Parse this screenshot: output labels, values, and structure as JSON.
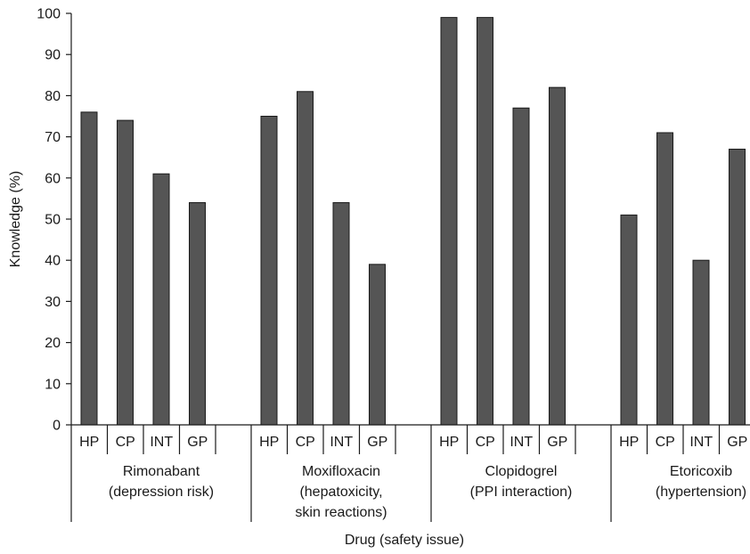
{
  "chart_data": {
    "type": "bar",
    "xlabel": "Drug (safety issue)",
    "ylabel": "Knowledge (%)",
    "ylim": [
      0,
      100
    ],
    "yticks": [
      0,
      10,
      20,
      30,
      40,
      50,
      60,
      70,
      80,
      90,
      100
    ],
    "grid": false,
    "legend": "none",
    "bar_color": "#555555",
    "groups": [
      {
        "label_lines": [
          "Rimonabant",
          "(depression risk)"
        ],
        "categories": [
          "HP",
          "CP",
          "INT",
          "GP"
        ],
        "values": [
          76,
          74,
          61,
          54
        ]
      },
      {
        "label_lines": [
          "Moxifloxacin",
          "(hepatoxicity,",
          "skin reactions)"
        ],
        "categories": [
          "HP",
          "CP",
          "INT",
          "GP"
        ],
        "values": [
          75,
          81,
          54,
          39
        ]
      },
      {
        "label_lines": [
          "Clopidogrel",
          "(PPI interaction)"
        ],
        "categories": [
          "HP",
          "CP",
          "INT",
          "GP"
        ],
        "values": [
          99,
          99,
          77,
          82
        ]
      },
      {
        "label_lines": [
          "Etoricoxib",
          "(hypertension)"
        ],
        "categories": [
          "HP",
          "CP",
          "INT",
          "GP"
        ],
        "values": [
          51,
          71,
          40,
          67
        ]
      }
    ]
  }
}
